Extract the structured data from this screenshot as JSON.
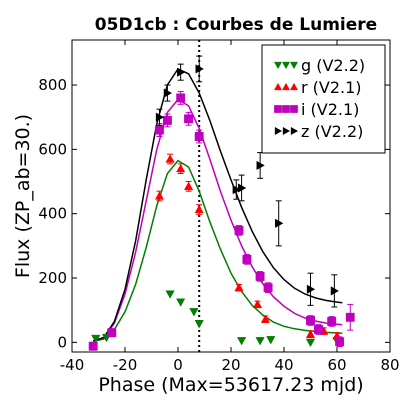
{
  "chart_data": {
    "type": "scatter",
    "title": "05D1cb : Courbes de Lumiere",
    "xlabel": "Phase (Max=53617.23 mjd)",
    "ylabel": "Flux (ZP_ab=30.)",
    "xlim": [
      -40,
      80
    ],
    "ylim": [
      -30,
      940
    ],
    "x_ticks": [
      -40,
      -20,
      0,
      20,
      40,
      60,
      80
    ],
    "x_tick_labels": [
      "-40",
      "-20",
      "0",
      "20",
      "40",
      "60",
      "80"
    ],
    "y_ticks": [
      0,
      200,
      400,
      600,
      800
    ],
    "y_tick_labels": [
      "0",
      "200",
      "400",
      "600",
      "800"
    ],
    "max_line_x": 8,
    "legend_position": "top-right",
    "series": [
      {
        "name": "g (V2.2)",
        "color": "#007f00",
        "marker": "triangle-down",
        "points": [
          {
            "x": -31,
            "y": 12,
            "err": 0
          },
          {
            "x": -27,
            "y": 15,
            "err": 0
          },
          {
            "x": -3,
            "y": 150,
            "err": 0
          },
          {
            "x": 1,
            "y": 125,
            "err": 0
          },
          {
            "x": 6,
            "y": 95,
            "err": 0
          },
          {
            "x": 8,
            "y": 58,
            "err": 0
          },
          {
            "x": 24,
            "y": 5,
            "err": 0
          },
          {
            "x": 31,
            "y": 5,
            "err": 0
          },
          {
            "x": 35,
            "y": 8,
            "err": 0
          },
          {
            "x": 50,
            "y": 0,
            "err": 0
          },
          {
            "x": 60,
            "y": 5,
            "err": 0
          }
        ],
        "fit": [
          [
            -32,
            4
          ],
          [
            -28,
            10
          ],
          [
            -24,
            40
          ],
          [
            -20,
            95
          ],
          [
            -16,
            180
          ],
          [
            -12,
            295
          ],
          [
            -8,
            425
          ],
          [
            -4,
            525
          ],
          [
            0,
            565
          ],
          [
            4,
            545
          ],
          [
            8,
            470
          ],
          [
            12,
            375
          ],
          [
            16,
            290
          ],
          [
            20,
            215
          ],
          [
            24,
            158
          ],
          [
            28,
            115
          ],
          [
            32,
            85
          ],
          [
            36,
            63
          ],
          [
            40,
            50
          ],
          [
            44,
            42
          ],
          [
            48,
            37
          ],
          [
            52,
            34
          ],
          [
            56,
            31
          ],
          [
            60,
            29
          ],
          [
            62,
            28
          ]
        ]
      },
      {
        "name": "r (V2.1)",
        "color": "#ff0000",
        "marker": "triangle-up",
        "points": [
          {
            "x": -7,
            "y": 455,
            "err": 15
          },
          {
            "x": -3,
            "y": 570,
            "err": 15
          },
          {
            "x": 1,
            "y": 540,
            "err": 15
          },
          {
            "x": 4,
            "y": 485,
            "err": 15
          },
          {
            "x": 8,
            "y": 413,
            "err": 15
          },
          {
            "x": 23,
            "y": 170,
            "err": 10
          },
          {
            "x": 30,
            "y": 118,
            "err": 10
          },
          {
            "x": 33,
            "y": 72,
            "err": 10
          },
          {
            "x": 50,
            "y": 25,
            "err": 10
          },
          {
            "x": 55,
            "y": 35,
            "err": 10
          },
          {
            "x": 60,
            "y": 20,
            "err": 10
          }
        ]
      },
      {
        "name": "i (V2.1)",
        "color": "#bf00bf",
        "marker": "square",
        "points": [
          {
            "x": -32,
            "y": -12,
            "err": 12
          },
          {
            "x": -25,
            "y": 30,
            "err": 12
          },
          {
            "x": -7,
            "y": 660,
            "err": 20
          },
          {
            "x": -4,
            "y": 690,
            "err": 20
          },
          {
            "x": 1,
            "y": 760,
            "err": 20
          },
          {
            "x": 4,
            "y": 695,
            "err": 20
          },
          {
            "x": 8,
            "y": 640,
            "err": 20
          },
          {
            "x": 23,
            "y": 348,
            "err": 15
          },
          {
            "x": 26,
            "y": 258,
            "err": 15
          },
          {
            "x": 31,
            "y": 205,
            "err": 15
          },
          {
            "x": 34,
            "y": 170,
            "err": 15
          },
          {
            "x": 50,
            "y": 68,
            "err": 15
          },
          {
            "x": 53,
            "y": 40,
            "err": 15
          },
          {
            "x": 58,
            "y": 65,
            "err": 15
          },
          {
            "x": 61,
            "y": 2,
            "err": 15
          },
          {
            "x": 65,
            "y": 78,
            "err": 40
          }
        ],
        "fit": [
          [
            -32,
            4
          ],
          [
            -28,
            14
          ],
          [
            -24,
            60
          ],
          [
            -20,
            150
          ],
          [
            -16,
            280
          ],
          [
            -12,
            440
          ],
          [
            -8,
            600
          ],
          [
            -4,
            715
          ],
          [
            0,
            755
          ],
          [
            4,
            735
          ],
          [
            8,
            665
          ],
          [
            12,
            570
          ],
          [
            16,
            470
          ],
          [
            20,
            380
          ],
          [
            24,
            300
          ],
          [
            28,
            235
          ],
          [
            32,
            182
          ],
          [
            36,
            142
          ],
          [
            40,
            112
          ],
          [
            44,
            90
          ],
          [
            48,
            75
          ],
          [
            52,
            66
          ],
          [
            56,
            60
          ],
          [
            60,
            56
          ],
          [
            62,
            55
          ]
        ]
      },
      {
        "name": "z (V2.2)",
        "color": "#000000",
        "marker": "triangle-right",
        "points": [
          {
            "x": -7,
            "y": 700,
            "err": 25
          },
          {
            "x": -4,
            "y": 775,
            "err": 25
          },
          {
            "x": 1,
            "y": 840,
            "err": 25
          },
          {
            "x": 8,
            "y": 850,
            "err": 40
          },
          {
            "x": 22,
            "y": 475,
            "err": 30
          },
          {
            "x": 24,
            "y": 480,
            "err": 40
          },
          {
            "x": 31,
            "y": 550,
            "err": 40
          },
          {
            "x": 38,
            "y": 370,
            "err": 70
          },
          {
            "x": 50,
            "y": 165,
            "err": 50
          },
          {
            "x": 59,
            "y": 160,
            "err": 50
          }
        ],
        "fit": [
          [
            -32,
            4
          ],
          [
            -28,
            15
          ],
          [
            -24,
            65
          ],
          [
            -20,
            165
          ],
          [
            -16,
            315
          ],
          [
            -12,
            505
          ],
          [
            -8,
            680
          ],
          [
            -4,
            800
          ],
          [
            0,
            850
          ],
          [
            4,
            835
          ],
          [
            8,
            775
          ],
          [
            12,
            690
          ],
          [
            16,
            595
          ],
          [
            20,
            505
          ],
          [
            24,
            420
          ],
          [
            28,
            345
          ],
          [
            32,
            282
          ],
          [
            36,
            232
          ],
          [
            40,
            195
          ],
          [
            44,
            168
          ],
          [
            48,
            150
          ],
          [
            52,
            138
          ],
          [
            56,
            130
          ],
          [
            60,
            125
          ],
          [
            62,
            123
          ]
        ]
      }
    ]
  }
}
